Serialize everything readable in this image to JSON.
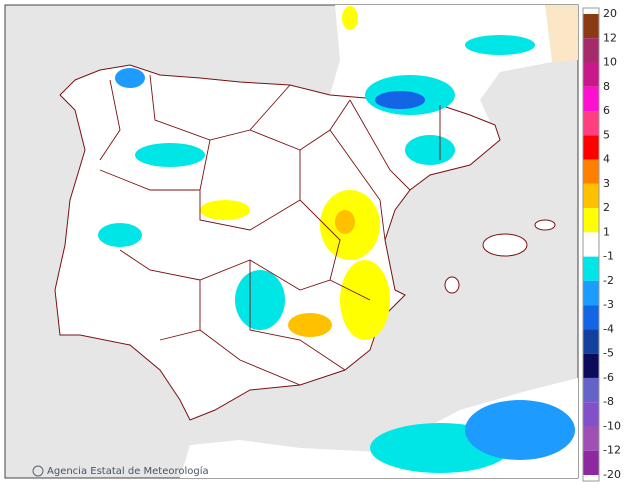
{
  "map": {
    "credit": "Agencia Estatal de Meteorología",
    "logo": "aemet"
  },
  "legend": {
    "labels": [
      "20",
      "12",
      "10",
      "8",
      "6",
      "5",
      "4",
      "3",
      "2",
      "1",
      "-1",
      "-2",
      "-3",
      "-4",
      "-5",
      "-6",
      "-8",
      "-10",
      "-12",
      "-20"
    ],
    "colors": [
      "#8b3a14",
      "#a52a6a",
      "#c8188c",
      "#ff10d0",
      "#ff3f7f",
      "#ff0000",
      "#ff8000",
      "#ffc000",
      "#ffff00",
      "#ffffff",
      "#00e6e6",
      "#1e9bff",
      "#1464e6",
      "#1440a0",
      "#0c0c5a",
      "#6464c8",
      "#8250c8",
      "#a050b4",
      "#8c28a0"
    ]
  }
}
